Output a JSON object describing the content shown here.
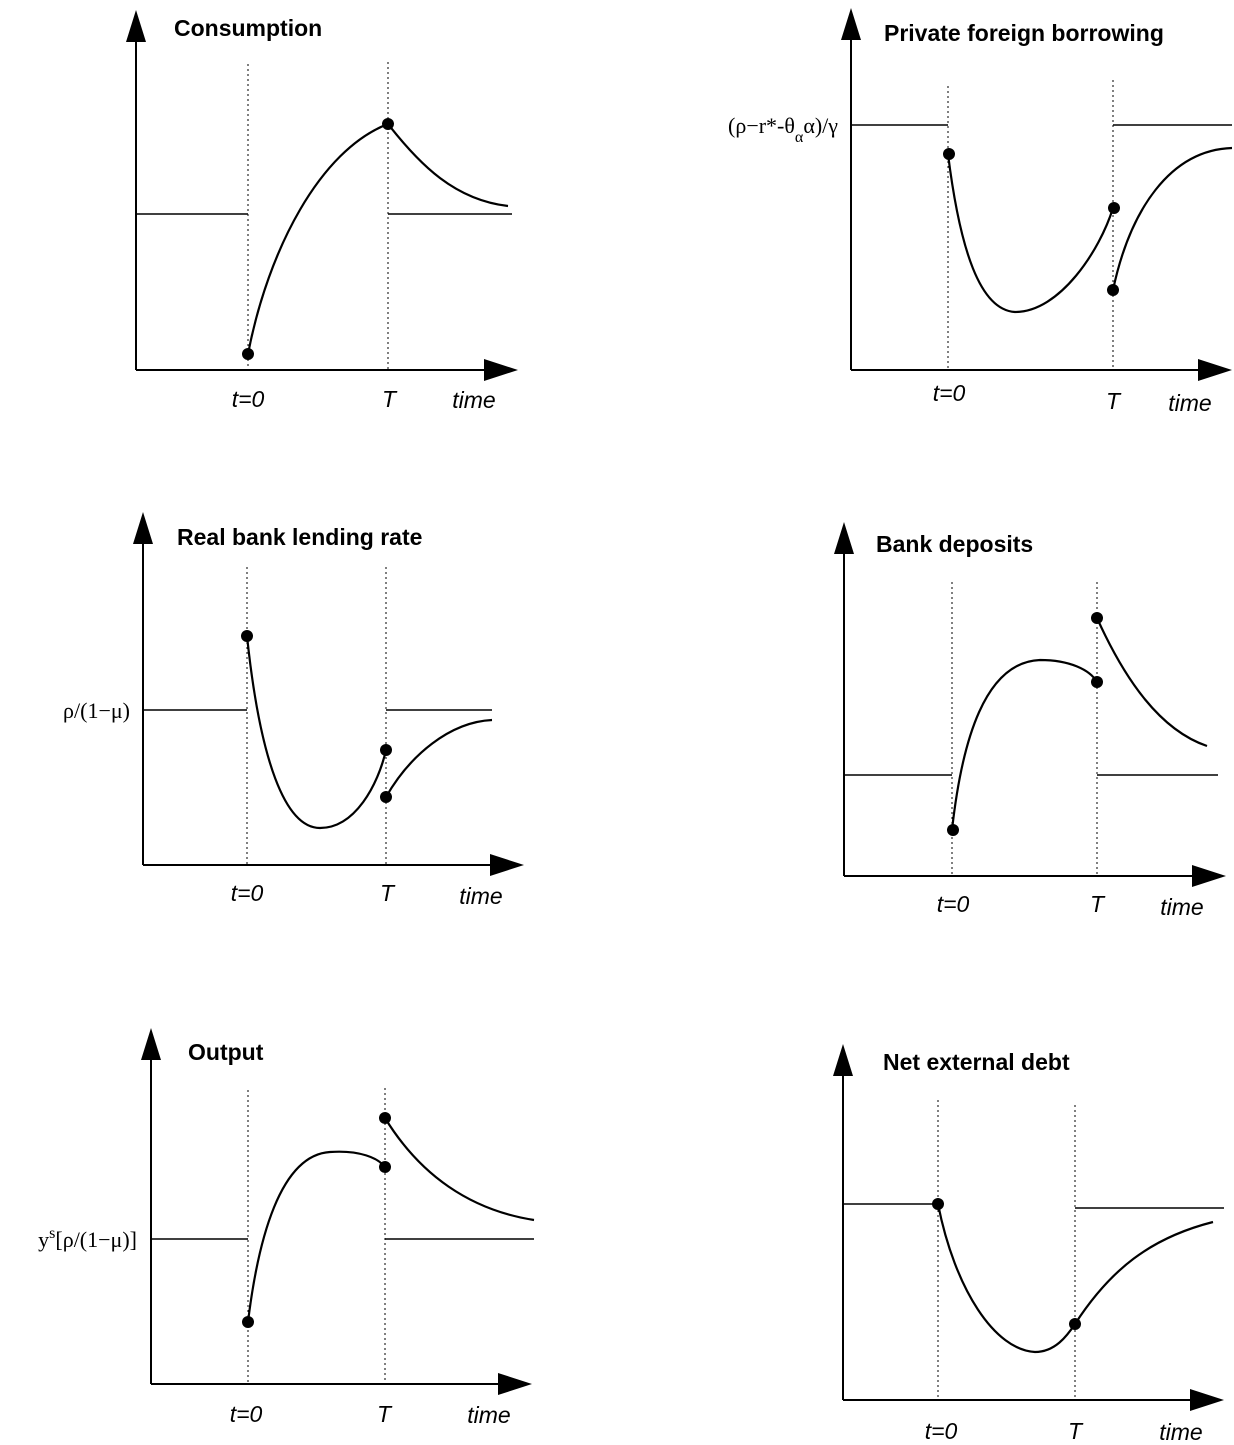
{
  "panels": [
    {
      "id": "consumption",
      "title": "Consumption",
      "level_label": "",
      "tick_t0": "t=0",
      "tick_T": "T",
      "axis_label": "time"
    },
    {
      "id": "private-foreign-borrowing",
      "title": "Private foreign borrowing",
      "level_label": "(ρ−r*-θαα)/γ",
      "level_label_parts": {
        "a": "(ρ−r*-θ",
        "sub": "α",
        "b": "α)/γ"
      },
      "tick_t0": "t=0",
      "tick_T": "T",
      "axis_label": "time"
    },
    {
      "id": "real-bank-lending-rate",
      "title": "Real bank lending rate",
      "level_label": "ρ/(1−μ)",
      "tick_t0": "t=0",
      "tick_T": "T",
      "axis_label": "time"
    },
    {
      "id": "bank-deposits",
      "title": "Bank deposits",
      "level_label": "",
      "tick_t0": "t=0",
      "tick_T": "T",
      "axis_label": "time"
    },
    {
      "id": "output",
      "title": "Output",
      "level_label": "ys[ρ/(1−μ)]",
      "level_label_parts": {
        "a": "y",
        "sup": "s",
        "b": "[ρ/(1−μ)]"
      },
      "tick_t0": "t=0",
      "tick_T": "T",
      "axis_label": "time"
    },
    {
      "id": "net-external-debt",
      "title": "Net external debt",
      "level_label": "",
      "tick_t0": "t=0",
      "tick_T": "T",
      "axis_label": "time"
    }
  ]
}
